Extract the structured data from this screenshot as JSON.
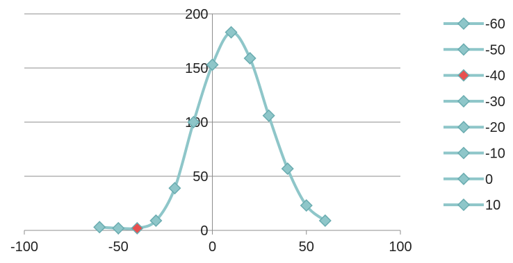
{
  "chart_data": {
    "type": "scatter",
    "title": "",
    "xlabel": "",
    "ylabel": "",
    "xlim": [
      -100,
      100
    ],
    "ylim": [
      0,
      200
    ],
    "x_ticks": [
      "-100",
      "-50",
      "0",
      "50",
      "100"
    ],
    "y_ticks": [
      "0",
      "50",
      "100",
      "150",
      "200"
    ],
    "x_tick_values": [
      -100,
      -50,
      0,
      50,
      100
    ],
    "y_tick_values": [
      0,
      50,
      100,
      150,
      200
    ],
    "grid": "horizontal",
    "smooth_line": true,
    "legend_position": "right",
    "legend": [
      "-60",
      "-50",
      "-40",
      "-30",
      "-20",
      "-10",
      "0",
      "10"
    ],
    "x": [
      -60,
      -50,
      -40,
      -30,
      -20,
      -10,
      0,
      10,
      20,
      30,
      40,
      50,
      60
    ],
    "y": [
      3,
      2,
      2,
      9,
      39,
      100,
      153,
      183,
      159,
      106,
      57,
      23,
      9
    ],
    "highlighted_point_x": -40,
    "colors": {
      "line": "#8ec6c9",
      "marker": "#8ec6c9",
      "marker_stroke": "#6aacb0",
      "highlight": "#e8504f",
      "grid": "#8c8c8c",
      "axis": "#8c8c8c"
    }
  }
}
